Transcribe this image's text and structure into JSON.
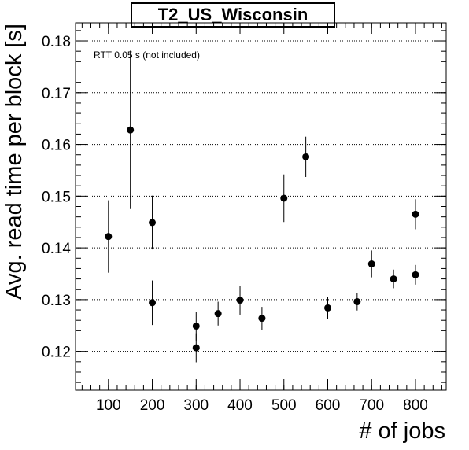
{
  "chart_data": {
    "type": "scatter",
    "title": "T2_US_Wisconsin",
    "xlabel": "# of jobs",
    "ylabel": "Avg. read time per block [s]",
    "annotation": "RTT 0.05 s (not included)",
    "xlim": [
      25,
      870
    ],
    "ylim": [
      0.1125,
      0.1835
    ],
    "x_ticks": [
      100,
      200,
      300,
      400,
      500,
      600,
      700,
      800
    ],
    "y_ticks": [
      0.12,
      0.13,
      0.14,
      0.15,
      0.16,
      0.17,
      0.18
    ],
    "y_tick_labels": [
      "0.12",
      "0.13",
      "0.14",
      "0.15",
      "0.16",
      "0.17",
      "0.18"
    ],
    "grid": "horizontal dotted",
    "marker_color": "#000000",
    "points": [
      {
        "x": 100,
        "y": 0.1422,
        "err": 0.007
      },
      {
        "x": 150,
        "y": 0.1628,
        "err": 0.0153
      },
      {
        "x": 200,
        "y": 0.1449,
        "err": 0.0052
      },
      {
        "x": 200,
        "y": 0.1294,
        "err": 0.0043
      },
      {
        "x": 300,
        "y": 0.1249,
        "err": 0.0028
      },
      {
        "x": 300,
        "y": 0.1207,
        "err": 0.0028
      },
      {
        "x": 350,
        "y": 0.1273,
        "err": 0.0023
      },
      {
        "x": 400,
        "y": 0.1299,
        "err": 0.0028
      },
      {
        "x": 450,
        "y": 0.1264,
        "err": 0.0022
      },
      {
        "x": 500,
        "y": 0.1496,
        "err": 0.0046
      },
      {
        "x": 550,
        "y": 0.1576,
        "err": 0.0039
      },
      {
        "x": 600,
        "y": 0.1284,
        "err": 0.0021
      },
      {
        "x": 667,
        "y": 0.1296,
        "err": 0.0017
      },
      {
        "x": 700,
        "y": 0.1369,
        "err": 0.0026
      },
      {
        "x": 750,
        "y": 0.134,
        "err": 0.0018
      },
      {
        "x": 800,
        "y": 0.1465,
        "err": 0.0029
      },
      {
        "x": 800,
        "y": 0.1348,
        "err": 0.0019
      }
    ]
  }
}
